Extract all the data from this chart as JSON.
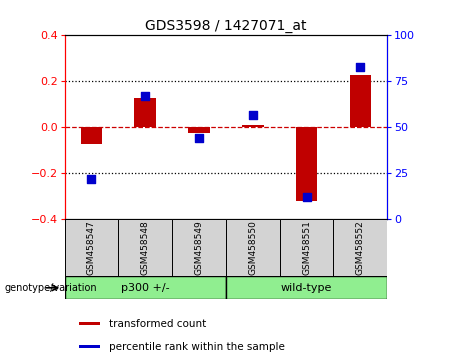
{
  "title": "GDS3598 / 1427071_at",
  "samples": [
    "GSM458547",
    "GSM458548",
    "GSM458549",
    "GSM458550",
    "GSM458551",
    "GSM458552"
  ],
  "bar_values": [
    -0.07,
    0.13,
    -0.025,
    0.012,
    -0.32,
    0.23
  ],
  "percentile_values": [
    22,
    67,
    44,
    57,
    12,
    83
  ],
  "bar_color": "#c00000",
  "percentile_color": "#0000cc",
  "zero_line_color": "#cc0000",
  "ylim_left": [
    -0.4,
    0.4
  ],
  "ylim_right": [
    0,
    100
  ],
  "yticks_left": [
    -0.4,
    -0.2,
    0.0,
    0.2,
    0.4
  ],
  "yticks_right": [
    0,
    25,
    50,
    75,
    100
  ],
  "legend_labels": [
    "transformed count",
    "percentile rank within the sample"
  ],
  "genotype_label": "genotype/variation",
  "p300_label": "p300 +/-",
  "wildtype_label": "wild-type",
  "header_bg": "#d3d3d3",
  "group_bg": "#90EE90",
  "bar_width": 0.4,
  "dot_size": 40
}
